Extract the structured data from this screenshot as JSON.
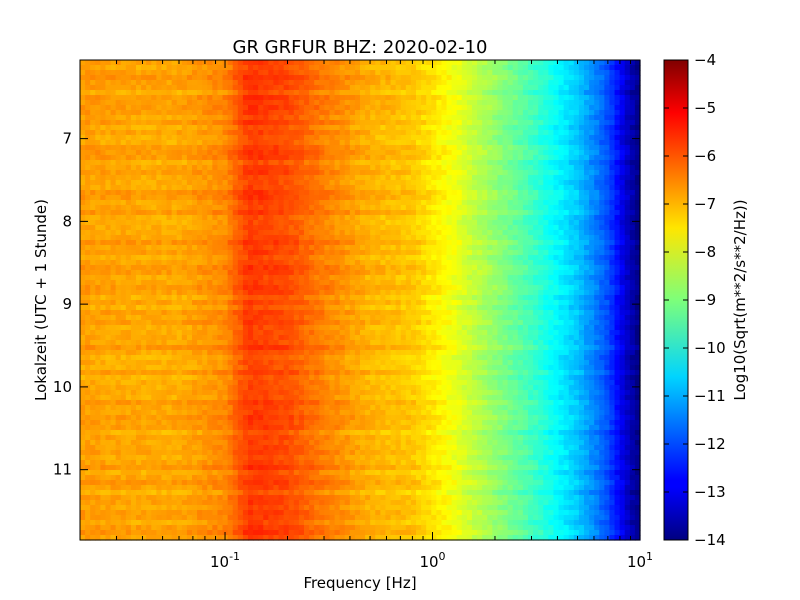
{
  "chart_data": {
    "type": "heatmap",
    "title": "GR GRFUR BHZ: 2020-02-10",
    "xlabel": "Frequency [Hz]",
    "ylabel": "Lokalzeit (UTC + 1 Stunde)",
    "x_scale": "log",
    "xlim": [
      0.02,
      10
    ],
    "ylim": [
      11.85,
      6.05
    ],
    "y_inverted": true,
    "x_ticks": [
      {
        "value": 0.1,
        "base": "10",
        "exp": "-1"
      },
      {
        "value": 1,
        "base": "10",
        "exp": "0"
      },
      {
        "value": 10,
        "base": "10",
        "exp": "1"
      }
    ],
    "y_ticks": [
      {
        "value": 7,
        "label": "7"
      },
      {
        "value": 8,
        "label": "8"
      },
      {
        "value": 9,
        "label": "9"
      },
      {
        "value": 10,
        "label": "10"
      },
      {
        "value": 11,
        "label": "11"
      }
    ],
    "colormap": "jet",
    "colorbar": {
      "label": "Log10(Sqrt(m**2/s**2/Hz))",
      "range": [
        -14,
        -4
      ],
      "ticks": [
        "-4",
        "-5",
        "-6",
        "-7",
        "-8",
        "-9",
        "-10",
        "-11",
        "-12",
        "-13",
        "-14"
      ]
    },
    "spectrum_profile": [
      {
        "freq": 0.02,
        "value": -6.8
      },
      {
        "freq": 0.04,
        "value": -6.9
      },
      {
        "freq": 0.06,
        "value": -6.9
      },
      {
        "freq": 0.1,
        "value": -6.6
      },
      {
        "freq": 0.13,
        "value": -5.8
      },
      {
        "freq": 0.2,
        "value": -6.0
      },
      {
        "freq": 0.3,
        "value": -6.5
      },
      {
        "freq": 0.5,
        "value": -7.0
      },
      {
        "freq": 0.8,
        "value": -7.2
      },
      {
        "freq": 1.2,
        "value": -7.8
      },
      {
        "freq": 2,
        "value": -8.8
      },
      {
        "freq": 3,
        "value": -9.6
      },
      {
        "freq": 5,
        "value": -10.8
      },
      {
        "freq": 7,
        "value": -12.0
      },
      {
        "freq": 9,
        "value": -13.5
      },
      {
        "freq": 10,
        "value": -14.0
      }
    ],
    "grid": false
  }
}
